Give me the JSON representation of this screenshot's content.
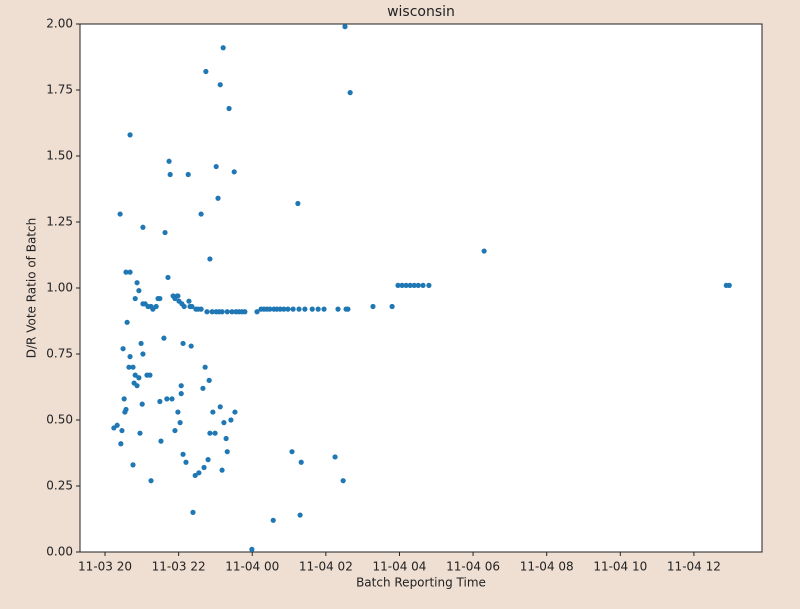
{
  "chart_data": {
    "type": "scatter",
    "title": "wisconsin",
    "xlabel": "Batch Reporting Time",
    "ylabel": "D/R Vote Ratio of Batch",
    "color": "#1f77b4",
    "xlim": [
      19.32,
      37.85
    ],
    "xticks": [
      {
        "value": 20,
        "label": "11-03 20"
      },
      {
        "value": 22,
        "label": "11-03 22"
      },
      {
        "value": 24,
        "label": "11-04 00"
      },
      {
        "value": 26,
        "label": "11-04 02"
      },
      {
        "value": 28,
        "label": "11-04 04"
      },
      {
        "value": 30,
        "label": "11-04 06"
      },
      {
        "value": 32,
        "label": "11-04 08"
      },
      {
        "value": 34,
        "label": "11-04 10"
      },
      {
        "value": 36,
        "label": "11-04 12"
      }
    ],
    "ylim": [
      0,
      2
    ],
    "yticks": [
      {
        "value": 0,
        "label": "0.00"
      },
      {
        "value": 0.25,
        "label": "0.25"
      },
      {
        "value": 0.5,
        "label": "0.50"
      },
      {
        "value": 0.75,
        "label": "0.75"
      },
      {
        "value": 1,
        "label": "1.00"
      },
      {
        "value": 1.25,
        "label": "1.25"
      },
      {
        "value": 1.5,
        "label": "1.50"
      },
      {
        "value": 1.75,
        "label": "1.75"
      },
      {
        "value": 2,
        "label": "2.00"
      }
    ],
    "x": [
      20.24,
      20.33,
      20.41,
      20.43,
      20.46,
      20.49,
      20.52,
      20.54,
      20.57,
      20.6,
      20.57,
      20.68,
      20.68,
      20.68,
      20.65,
      20.76,
      20.76,
      20.79,
      20.82,
      20.82,
      20.87,
      20.87,
      20.92,
      20.92,
      20.95,
      20.98,
      21.01,
      21.03,
      21.03,
      21.03,
      21.09,
      21.14,
      21.17,
      21.22,
      21.25,
      21.25,
      21.3,
      21.39,
      21.44,
      21.49,
      21.49,
      21.52,
      21.6,
      21.63,
      21.68,
      21.71,
      21.74,
      21.77,
      21.82,
      21.85,
      21.9,
      21.9,
      21.96,
      21.98,
      21.98,
      22.01,
      22.07,
      22.07,
      22.04,
      22.09,
      22.12,
      22.12,
      22.15,
      22.2,
      22.26,
      22.28,
      22.31,
      22.34,
      22.36,
      22.39,
      22.45,
      22.47,
      22.53,
      22.55,
      22.61,
      22.61,
      22.66,
      22.69,
      22.72,
      22.74,
      22.77,
      22.8,
      22.83,
      22.85,
      22.85,
      22.91,
      22.93,
      22.99,
      23.02,
      23.02,
      23.07,
      23.1,
      23.13,
      23.13,
      23.18,
      23.18,
      23.21,
      23.23,
      23.29,
      23.32,
      23.32,
      23.37,
      23.42,
      23.45,
      23.51,
      23.53,
      23.56,
      23.64,
      23.72,
      23.8,
      23.99,
      24.13,
      24.24,
      24.32,
      24.4,
      24.48,
      24.57,
      24.59,
      24.67,
      24.76,
      24.86,
      24.97,
      25.08,
      25.11,
      25.24,
      25.27,
      25.3,
      25.33,
      25.43,
      25.63,
      25.79,
      25.95,
      26.25,
      26.33,
      26.47,
      26.52,
      26.55,
      26.6,
      26.66,
      27.28,
      27.8,
      27.96,
      28.07,
      28.18,
      28.29,
      28.4,
      28.51,
      28.64,
      28.8,
      30.3,
      36.88,
      36.96
    ],
    "values": [
      0.47,
      0.48,
      1.28,
      0.41,
      0.46,
      0.77,
      0.58,
      0.53,
      0.54,
      0.87,
      1.06,
      1.06,
      1.58,
      0.74,
      0.7,
      0.7,
      0.33,
      0.64,
      0.67,
      0.96,
      1.02,
      0.63,
      0.99,
      0.66,
      0.45,
      0.79,
      0.56,
      0.94,
      1.23,
      0.75,
      0.94,
      0.67,
      0.93,
      0.67,
      0.27,
      0.93,
      0.92,
      0.93,
      0.96,
      0.96,
      0.57,
      0.42,
      0.81,
      1.21,
      0.58,
      1.04,
      1.48,
      1.43,
      0.58,
      0.97,
      0.46,
      0.96,
      0.97,
      0.97,
      0.53,
      0.95,
      0.6,
      0.63,
      0.49,
      0.94,
      0.37,
      0.79,
      0.93,
      0.34,
      1.43,
      0.95,
      0.93,
      0.78,
      0.93,
      0.15,
      0.29,
      0.92,
      0.92,
      0.3,
      1.28,
      0.92,
      0.62,
      0.32,
      0.7,
      1.82,
      0.91,
      0.35,
      0.65,
      1.11,
      0.45,
      0.91,
      0.53,
      0.45,
      0.91,
      1.46,
      1.34,
      0.91,
      1.77,
      0.55,
      0.91,
      0.31,
      1.91,
      0.49,
      0.43,
      0.91,
      0.38,
      1.68,
      0.5,
      0.91,
      1.44,
      0.53,
      0.91,
      0.91,
      0.91,
      0.91,
      0.01,
      0.91,
      0.92,
      0.92,
      0.92,
      0.92,
      0.12,
      0.92,
      0.92,
      0.92,
      0.92,
      0.92,
      0.38,
      0.92,
      1.32,
      0.92,
      0.14,
      0.34,
      0.92,
      0.92,
      0.92,
      0.92,
      0.36,
      0.92,
      0.27,
      1.99,
      0.92,
      0.92,
      1.74,
      0.93,
      0.93,
      1.01,
      1.01,
      1.01,
      1.01,
      1.01,
      1.01,
      1.01,
      1.01,
      1.14,
      1.01,
      1.01
    ]
  }
}
